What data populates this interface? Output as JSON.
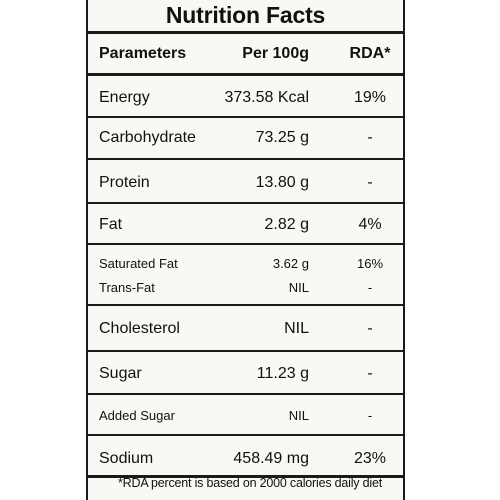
{
  "title": "Nutrition Facts",
  "headers": {
    "parameter": "Parameters",
    "per100g": "Per 100g",
    "rda": "RDA*"
  },
  "rows": [
    {
      "name": "Energy",
      "value": "373.58 Kcal",
      "rda": "19%"
    },
    {
      "name": "Carbohydrate",
      "value": "73.25 g",
      "rda": "-"
    },
    {
      "name": "Protein",
      "value": "13.80 g",
      "rda": "-"
    },
    {
      "name": "Fat",
      "value": "2.82 g",
      "rda": "4%"
    },
    {
      "name": "Saturated Fat",
      "value": "3.62 g",
      "rda": "16%"
    },
    {
      "name": "Trans-Fat",
      "value": "NIL",
      "rda": "-"
    },
    {
      "name": "Cholesterol",
      "value": "NIL",
      "rda": "-"
    },
    {
      "name": "Sugar",
      "value": "11.23 g",
      "rda": "-"
    },
    {
      "name": "Added Sugar",
      "value": "NIL",
      "rda": "-"
    },
    {
      "name": "Sodium",
      "value": "458.49 mg",
      "rda": "23%"
    }
  ],
  "footnote": "*RDA percent is based on 2000 calories daily diet"
}
